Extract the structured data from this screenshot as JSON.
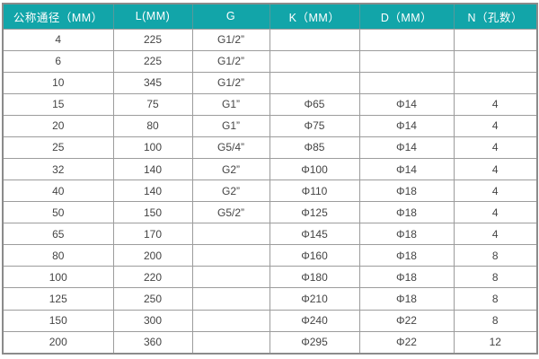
{
  "table": {
    "headers": [
      "公称通径（MM）",
      "L(MM)",
      "G",
      "K（MM）",
      "D（MM）",
      "N（孔数）"
    ],
    "rows": [
      [
        "4",
        "225",
        "G1/2”",
        "",
        "",
        ""
      ],
      [
        "6",
        "225",
        "G1/2”",
        "",
        "",
        ""
      ],
      [
        "10",
        "345",
        "G1/2”",
        "",
        "",
        ""
      ],
      [
        "15",
        "75",
        "G1”",
        "Φ65",
        "Φ14",
        "4"
      ],
      [
        "20",
        "80",
        "G1”",
        "Φ75",
        "Φ14",
        "4"
      ],
      [
        "25",
        "100",
        "G5/4”",
        "Φ85",
        "Φ14",
        "4"
      ],
      [
        "32",
        "140",
        "G2”",
        "Φ100",
        "Φ14",
        "4"
      ],
      [
        "40",
        "140",
        "G2”",
        "Φ110",
        "Φ18",
        "4"
      ],
      [
        "50",
        "150",
        "G5/2”",
        "Φ125",
        "Φ18",
        "4"
      ],
      [
        "65",
        "170",
        "",
        "Φ145",
        "Φ18",
        "4"
      ],
      [
        "80",
        "200",
        "",
        "Φ160",
        "Φ18",
        "8"
      ],
      [
        "100",
        "220",
        "",
        "Φ180",
        "Φ18",
        "8"
      ],
      [
        "125",
        "250",
        "",
        "Φ210",
        "Φ18",
        "8"
      ],
      [
        "150",
        "300",
        "",
        "Φ240",
        "Φ22",
        "8"
      ],
      [
        "200",
        "360",
        "",
        "Φ295",
        "Φ22",
        "12"
      ]
    ],
    "colors": {
      "header_bg": "#12a5a9",
      "header_text": "#ffffff",
      "grid_border": "#9c9c9c",
      "outer_border": "#8b8b8b",
      "body_text": "#444444",
      "row_bg": "#ffffff"
    }
  }
}
